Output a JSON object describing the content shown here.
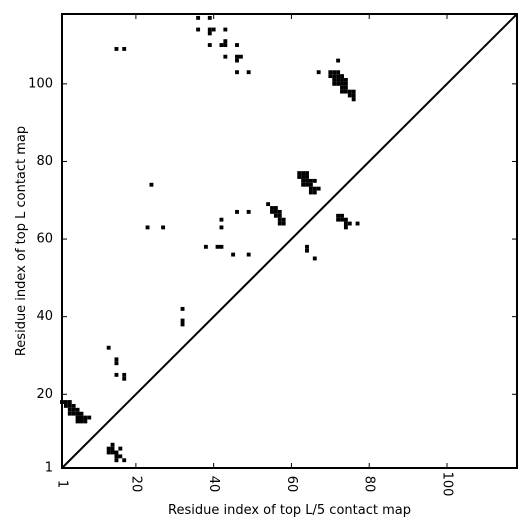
{
  "chart_data": {
    "type": "scatter",
    "title": "",
    "xlabel": "Residue index of top L/5 contact map",
    "ylabel": "Residue index of top L contact map",
    "xlim": [
      1,
      118
    ],
    "ylim": [
      1,
      118
    ],
    "x_ticks": [
      1,
      20,
      40,
      60,
      80,
      100
    ],
    "y_ticks": [
      1,
      20,
      40,
      60,
      80,
      100
    ],
    "grid": false,
    "marker": "square",
    "color": "#000000",
    "diagonal": true,
    "points": [
      [
        1,
        18
      ],
      [
        2,
        18
      ],
      [
        3,
        18
      ],
      [
        2,
        17
      ],
      [
        3,
        17
      ],
      [
        4,
        17
      ],
      [
        3,
        16
      ],
      [
        4,
        16
      ],
      [
        5,
        16
      ],
      [
        3,
        15
      ],
      [
        4,
        15
      ],
      [
        5,
        15
      ],
      [
        6,
        15
      ],
      [
        5,
        14
      ],
      [
        6,
        14
      ],
      [
        7,
        14
      ],
      [
        8,
        14
      ],
      [
        5,
        13
      ],
      [
        6,
        13
      ],
      [
        7,
        13
      ],
      [
        14,
        7
      ],
      [
        13,
        6
      ],
      [
        14,
        6
      ],
      [
        13,
        5
      ],
      [
        14,
        5
      ],
      [
        15,
        5
      ],
      [
        16,
        6
      ],
      [
        15,
        4
      ],
      [
        16,
        4
      ],
      [
        17,
        3
      ],
      [
        15,
        3
      ],
      [
        13,
        32
      ],
      [
        15,
        29
      ],
      [
        15,
        28
      ],
      [
        15,
        25
      ],
      [
        17,
        25
      ],
      [
        17,
        24
      ],
      [
        15,
        109
      ],
      [
        17,
        109
      ],
      [
        24,
        74
      ],
      [
        23,
        63
      ],
      [
        27,
        63
      ],
      [
        32,
        42
      ],
      [
        32,
        39
      ],
      [
        32,
        38
      ],
      [
        36,
        117
      ],
      [
        39,
        117
      ],
      [
        36,
        114
      ],
      [
        39,
        114
      ],
      [
        40,
        114
      ],
      [
        39,
        113
      ],
      [
        43,
        114
      ],
      [
        39,
        110
      ],
      [
        42,
        110
      ],
      [
        43,
        110
      ],
      [
        43,
        111
      ],
      [
        46,
        110
      ],
      [
        43,
        107
      ],
      [
        46,
        107
      ],
      [
        47,
        107
      ],
      [
        46,
        106
      ],
      [
        46,
        103
      ],
      [
        49,
        103
      ],
      [
        38,
        58
      ],
      [
        41,
        58
      ],
      [
        42,
        58
      ],
      [
        42,
        65
      ],
      [
        42,
        63
      ],
      [
        45,
        56
      ],
      [
        49,
        56
      ],
      [
        46,
        67
      ],
      [
        49,
        67
      ],
      [
        54,
        69
      ],
      [
        55,
        68
      ],
      [
        56,
        68
      ],
      [
        55,
        67
      ],
      [
        56,
        67
      ],
      [
        57,
        67
      ],
      [
        56,
        66
      ],
      [
        57,
        66
      ],
      [
        57,
        65
      ],
      [
        58,
        65
      ],
      [
        57,
        64
      ],
      [
        58,
        64
      ],
      [
        62,
        77
      ],
      [
        63,
        77
      ],
      [
        64,
        77
      ],
      [
        62,
        76
      ],
      [
        63,
        76
      ],
      [
        64,
        76
      ],
      [
        63,
        75
      ],
      [
        64,
        75
      ],
      [
        65,
        75
      ],
      [
        66,
        75
      ],
      [
        63,
        74
      ],
      [
        64,
        74
      ],
      [
        65,
        74
      ],
      [
        65,
        73
      ],
      [
        66,
        73
      ],
      [
        67,
        73
      ],
      [
        65,
        72
      ],
      [
        66,
        72
      ],
      [
        64,
        58
      ],
      [
        64,
        57
      ],
      [
        66,
        55
      ],
      [
        67,
        103
      ],
      [
        70,
        103
      ],
      [
        71,
        103
      ],
      [
        72,
        103
      ],
      [
        70,
        102
      ],
      [
        71,
        102
      ],
      [
        72,
        102
      ],
      [
        73,
        102
      ],
      [
        71,
        101
      ],
      [
        72,
        101
      ],
      [
        73,
        101
      ],
      [
        74,
        101
      ],
      [
        71,
        100
      ],
      [
        72,
        100
      ],
      [
        73,
        100
      ],
      [
        74,
        100
      ],
      [
        73,
        99
      ],
      [
        74,
        99
      ],
      [
        73,
        98
      ],
      [
        74,
        98
      ],
      [
        75,
        98
      ],
      [
        76,
        98
      ],
      [
        75,
        97
      ],
      [
        76,
        97
      ],
      [
        76,
        96
      ],
      [
        72,
        106
      ],
      [
        72,
        66
      ],
      [
        73,
        66
      ],
      [
        72,
        65
      ],
      [
        73,
        65
      ],
      [
        74,
        65
      ],
      [
        74,
        64
      ],
      [
        75,
        64
      ],
      [
        77,
        64
      ],
      [
        74,
        63
      ]
    ]
  }
}
